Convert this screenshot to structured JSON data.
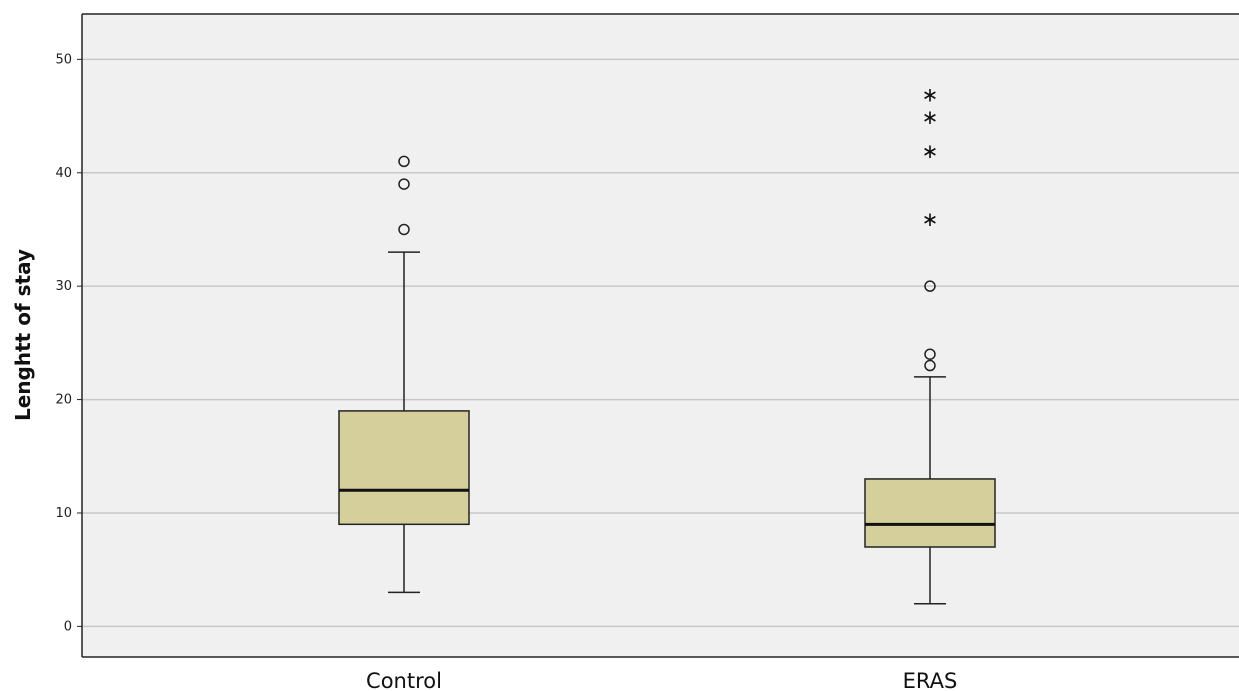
{
  "chart_data": {
    "type": "boxplot",
    "ylabel": "Lenghtt of stay",
    "xlabel": "",
    "ylim": [
      -2.7,
      54
    ],
    "yticks": [
      0,
      10,
      20,
      30,
      40,
      50
    ],
    "grid": true,
    "categories": [
      "Control",
      "ERAS"
    ],
    "boxes": [
      {
        "category": "Control",
        "whisker_low": 3,
        "q1": 9,
        "median": 12,
        "q3": 19,
        "whisker_high": 33,
        "outliers": [
          35,
          39,
          41
        ],
        "extremes": []
      },
      {
        "category": "ERAS",
        "whisker_low": 2,
        "q1": 7,
        "median": 9,
        "q3": 13,
        "whisker_high": 22,
        "outliers": [
          23,
          24,
          30
        ],
        "extremes": [
          36,
          42,
          45,
          47
        ]
      }
    ],
    "colors": {
      "box_fill": "#d5cf9c",
      "plot_background": "#f0f0f0",
      "gridline": "#c8c8c8",
      "stroke": "#222222"
    }
  }
}
